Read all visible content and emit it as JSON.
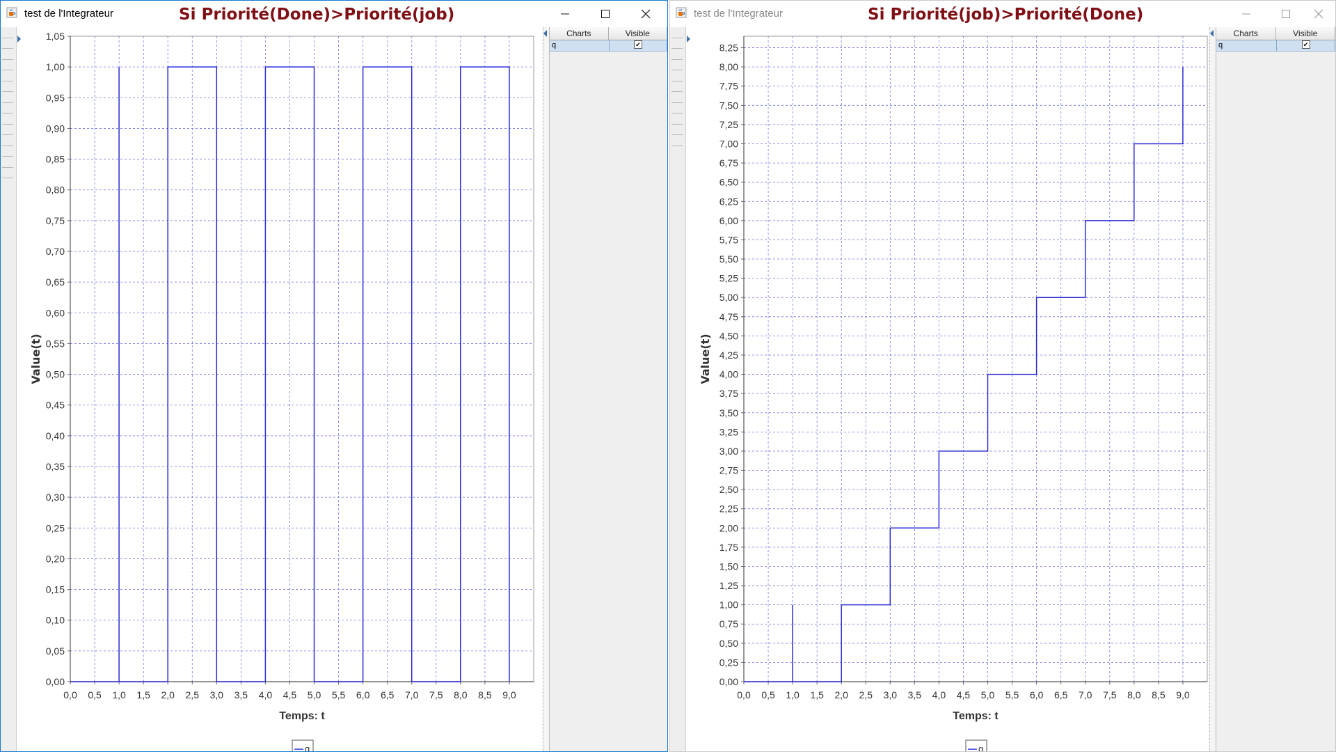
{
  "app": {
    "icon": "java-cup-icon"
  },
  "windows": [
    {
      "title": "test de l'Integrateur",
      "caption": "Si Priorité(Done)>Priorité(job)",
      "controls": {
        "minimize": "minimize-icon",
        "maximize": "maximize-icon",
        "close": "close-icon"
      },
      "table": {
        "headers": [
          "Charts",
          "Visible"
        ],
        "rows": [
          {
            "name": "q",
            "visible": "✔"
          }
        ]
      },
      "chart_data": {
        "type": "line",
        "step": true,
        "title": "",
        "xlabel": "Temps: t",
        "ylabel": "Value(t)",
        "xlim": [
          0,
          9.5
        ],
        "ylim": [
          0,
          1.05
        ],
        "grid": true,
        "legend_position": "bottom-center",
        "x_ticks": [
          "0,0",
          "0,5",
          "1,0",
          "1,5",
          "2,0",
          "2,5",
          "3,0",
          "3,5",
          "4,0",
          "4,5",
          "5,0",
          "5,5",
          "6,0",
          "6,5",
          "7,0",
          "7,5",
          "8,0",
          "8,5",
          "9,0"
        ],
        "y_ticks": [
          "0,00",
          "0,05",
          "0,10",
          "0,15",
          "0,20",
          "0,25",
          "0,30",
          "0,35",
          "0,40",
          "0,45",
          "0,50",
          "0,55",
          "0,60",
          "0,65",
          "0,70",
          "0,75",
          "0,80",
          "0,85",
          "0,90",
          "0,95",
          "1,00",
          "1,05"
        ],
        "series": [
          {
            "name": "q",
            "color": "#2b2bd6",
            "x": [
              0,
              1,
              1,
              1,
              2,
              2,
              3,
              3,
              4,
              4,
              5,
              5,
              6,
              6,
              7,
              7,
              8,
              8,
              9,
              9
            ],
            "y": [
              0,
              0,
              1,
              0,
              0,
              1,
              1,
              0,
              0,
              1,
              1,
              0,
              0,
              1,
              1,
              0,
              0,
              1,
              1,
              0
            ]
          }
        ]
      }
    },
    {
      "title": "test de l'Integrateur",
      "caption": "Si Priorité(job)>Priorité(Done)",
      "controls": {
        "minimize": "minimize-icon",
        "maximize": "maximize-icon",
        "close": "close-icon"
      },
      "table": {
        "headers": [
          "Charts",
          "Visible"
        ],
        "rows": [
          {
            "name": "q",
            "visible": "✔"
          }
        ]
      },
      "chart_data": {
        "type": "line",
        "step": true,
        "title": "",
        "xlabel": "Temps: t",
        "ylabel": "Value(t)",
        "xlim": [
          0,
          9.5
        ],
        "ylim": [
          0,
          8.4
        ],
        "grid": true,
        "legend_position": "bottom-center",
        "x_ticks": [
          "0,0",
          "0,5",
          "1,0",
          "1,5",
          "2,0",
          "2,5",
          "3,0",
          "3,5",
          "4,0",
          "4,5",
          "5,0",
          "5,5",
          "6,0",
          "6,5",
          "7,0",
          "7,5",
          "8,0",
          "8,5",
          "9,0"
        ],
        "y_ticks": [
          "0,00",
          "0,25",
          "0,50",
          "0,75",
          "1,00",
          "1,25",
          "1,50",
          "1,75",
          "2,00",
          "2,25",
          "2,50",
          "2,75",
          "3,00",
          "3,25",
          "3,50",
          "3,75",
          "4,00",
          "4,25",
          "4,50",
          "4,75",
          "5,00",
          "5,25",
          "5,50",
          "5,75",
          "6,00",
          "6,25",
          "6,50",
          "6,75",
          "7,00",
          "7,25",
          "7,50",
          "7,75",
          "8,00",
          "8,25"
        ],
        "series": [
          {
            "name": "q",
            "color": "#2b2bd6",
            "x": [
              0,
              1,
              1,
              1,
              2,
              2,
              3,
              3,
              4,
              4,
              5,
              5,
              6,
              6,
              7,
              7,
              8,
              8,
              9,
              9
            ],
            "y": [
              0,
              0,
              1,
              0,
              0,
              1,
              1,
              2,
              2,
              3,
              3,
              4,
              4,
              5,
              5,
              6,
              6,
              7,
              7,
              8
            ]
          }
        ]
      }
    }
  ]
}
